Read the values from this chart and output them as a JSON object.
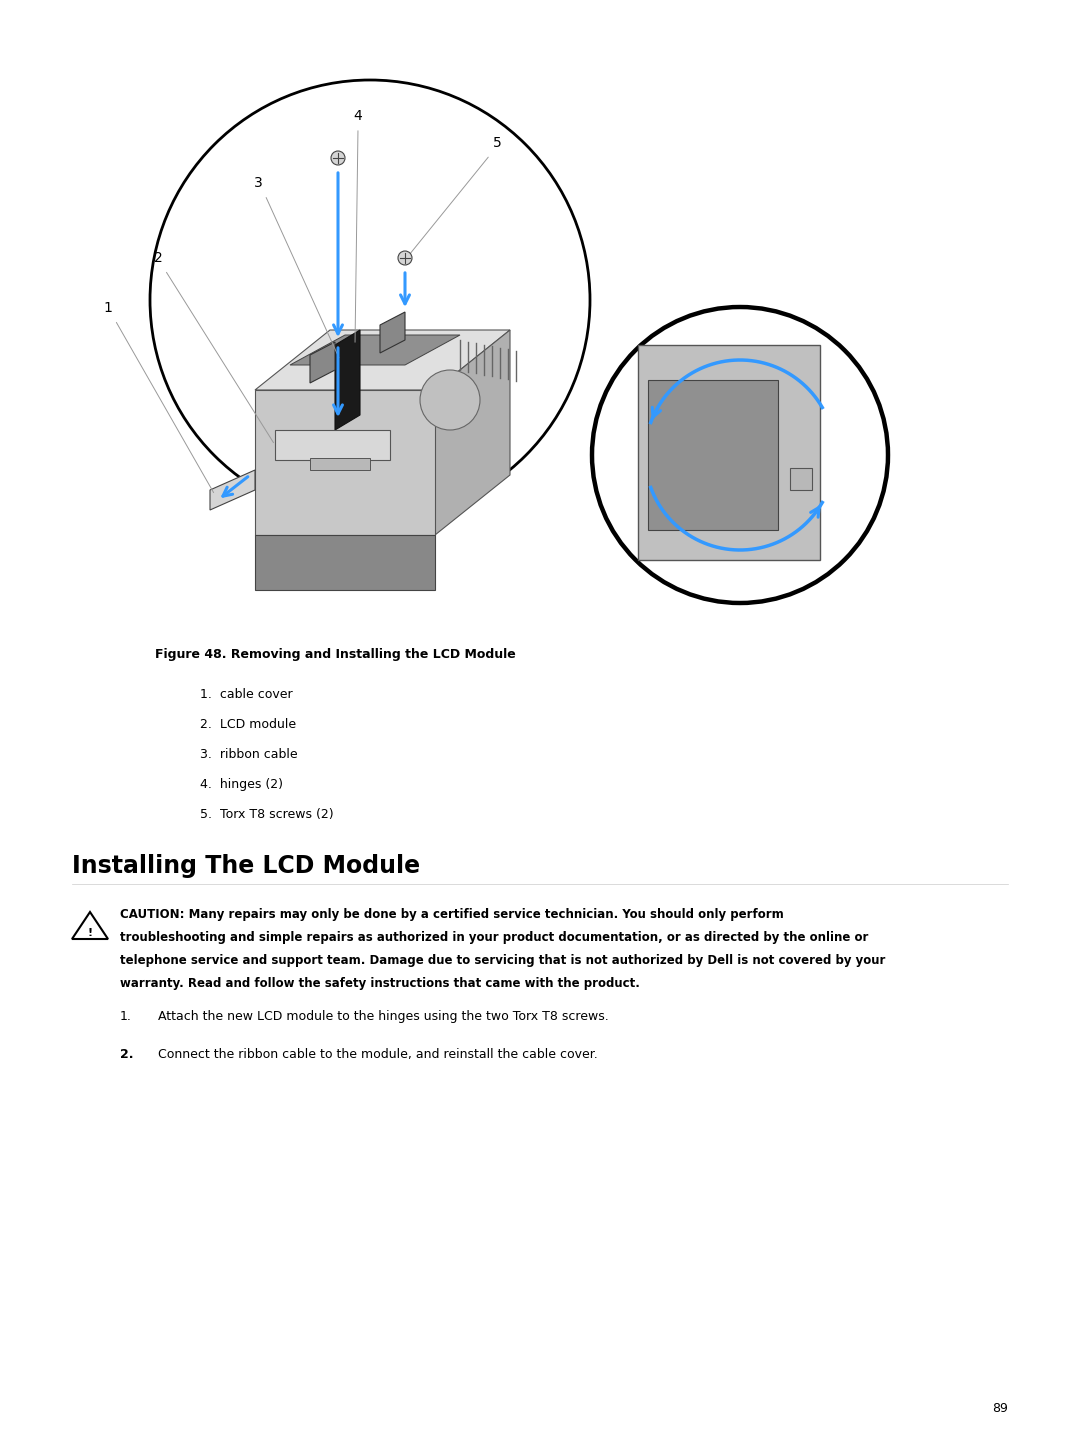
{
  "bg_color": "#ffffff",
  "figure_caption": "Figure 48. Removing and Installing the LCD Module",
  "figure_items": [
    "1.  cable cover",
    "2.  LCD module",
    "3.  ribbon cable",
    "4.  hinges (2)",
    "5.  Torx T8 screws (2)"
  ],
  "section_title": "Installing The LCD Module",
  "caution_text": "CAUTION: Many repairs may only be done by a certified service technician. You should only perform troubleshooting and simple repairs as authorized in your product documentation, or as directed by the online or telephone service and support team. Damage due to servicing that is not authorized by Dell is not covered by your warranty. Read and follow the safety instructions that came with the product.",
  "step1": "Attach the new LCD module to the hinges using the two Torx T8 screws.",
  "step2": "Connect the ribbon cable to the module, and reinstall the cable cover.",
  "page_number": "89",
  "blue": "#3399ff",
  "gray_light": "#d0d0d0",
  "gray_mid": "#a0a0a0",
  "gray_dark": "#707070",
  "black": "#000000",
  "callout_gray": "#999999"
}
